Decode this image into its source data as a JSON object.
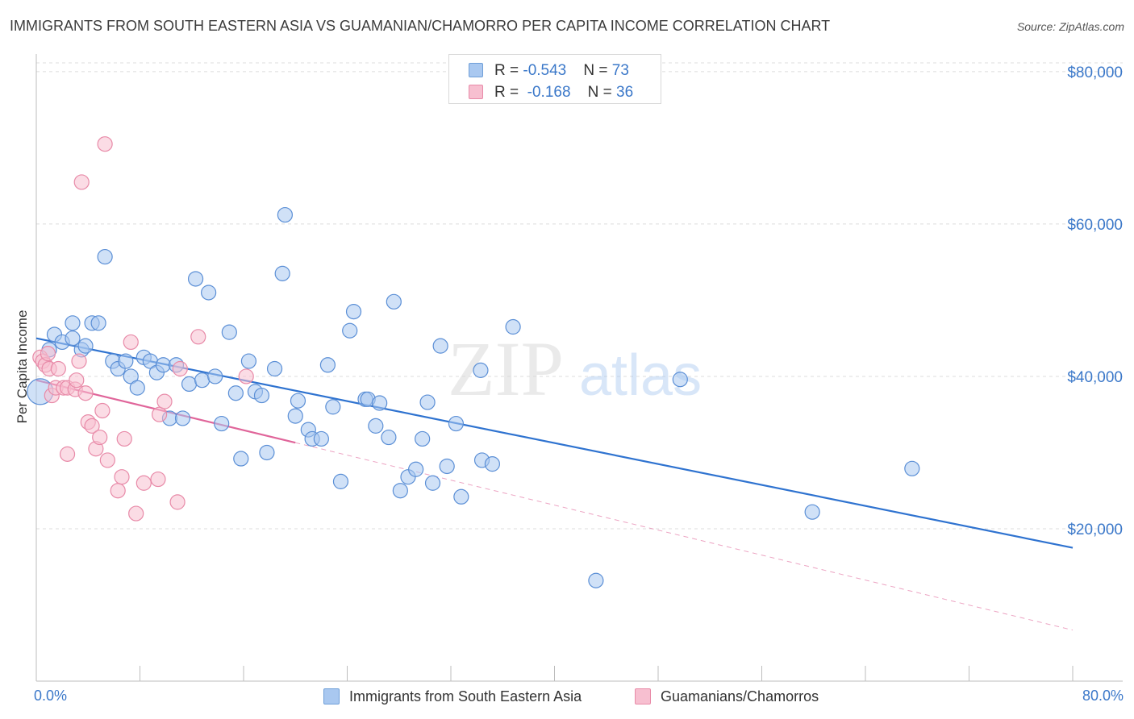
{
  "title": "IMMIGRANTS FROM SOUTH EASTERN ASIA VS GUAMANIAN/CHAMORRO PER CAPITA INCOME CORRELATION CHART",
  "source": "Source: ZipAtlas.com",
  "watermark": {
    "zip": "ZIP",
    "atlas": "atlas"
  },
  "legend": {
    "rows": [
      {
        "r_label": "R = ",
        "r_value": "-0.543",
        "n_label": "N = ",
        "n_value": "73",
        "color": "#a9c8f0",
        "border": "#6f9fd8"
      },
      {
        "r_label": "R = ",
        "r_value": "-0.168",
        "n_label": "N = ",
        "n_value": "36",
        "color": "#f7bfd0",
        "border": "#e88aa8"
      }
    ]
  },
  "chart_data": {
    "type": "scatter",
    "xlabel": "",
    "ylabel": "Per Capita Income",
    "xlim": [
      0,
      80
    ],
    "ylim": [
      0,
      82000
    ],
    "x_tick_labels": [
      "0.0%",
      "80.0%"
    ],
    "y_ticks": [
      20000,
      40000,
      60000,
      80000
    ],
    "y_tick_labels": [
      "$20,000",
      "$40,000",
      "$60,000",
      "$80,000"
    ],
    "grid": "horizontal dashed",
    "legend_position": "bottom",
    "series": [
      {
        "name": "Immigrants from South Eastern Asia",
        "color": "#a9c8f0",
        "stroke": "#5b8fd6",
        "line_color": "#2f73d0",
        "trend": {
          "x": [
            0,
            80
          ],
          "y": [
            45000,
            17500
          ]
        },
        "points": [
          [
            0.3,
            38000
          ],
          [
            1.4,
            45500
          ],
          [
            2.0,
            44500
          ],
          [
            2.8,
            45000
          ],
          [
            2.8,
            47000
          ],
          [
            3.5,
            43500
          ],
          [
            3.8,
            44000
          ],
          [
            4.3,
            47000
          ],
          [
            4.8,
            47000
          ],
          [
            5.3,
            55700
          ],
          [
            5.9,
            42000
          ],
          [
            6.3,
            41000
          ],
          [
            6.9,
            42000
          ],
          [
            7.3,
            40000
          ],
          [
            7.8,
            38500
          ],
          [
            8.3,
            42500
          ],
          [
            8.8,
            42000
          ],
          [
            9.3,
            40500
          ],
          [
            9.8,
            41500
          ],
          [
            10.3,
            34500
          ],
          [
            10.8,
            41500
          ],
          [
            11.3,
            34500
          ],
          [
            11.8,
            39000
          ],
          [
            12.3,
            52800
          ],
          [
            12.8,
            39500
          ],
          [
            13.3,
            51000
          ],
          [
            13.8,
            40000
          ],
          [
            14.3,
            33800
          ],
          [
            14.9,
            45800
          ],
          [
            15.4,
            37800
          ],
          [
            15.8,
            29200
          ],
          [
            16.4,
            42000
          ],
          [
            16.9,
            38000
          ],
          [
            17.4,
            37500
          ],
          [
            17.8,
            30000
          ],
          [
            18.4,
            41000
          ],
          [
            19.0,
            53500
          ],
          [
            19.2,
            61200
          ],
          [
            20.0,
            34800
          ],
          [
            20.2,
            36800
          ],
          [
            21.0,
            33000
          ],
          [
            21.3,
            31800
          ],
          [
            22.0,
            31800
          ],
          [
            22.5,
            41500
          ],
          [
            22.9,
            36000
          ],
          [
            23.5,
            26200
          ],
          [
            24.2,
            46000
          ],
          [
            24.5,
            48500
          ],
          [
            25.4,
            37000
          ],
          [
            25.6,
            37000
          ],
          [
            26.2,
            33500
          ],
          [
            26.5,
            36500
          ],
          [
            27.2,
            32000
          ],
          [
            27.6,
            49800
          ],
          [
            28.1,
            25000
          ],
          [
            28.7,
            26800
          ],
          [
            29.3,
            27800
          ],
          [
            29.8,
            31800
          ],
          [
            30.2,
            36600
          ],
          [
            30.6,
            26000
          ],
          [
            31.2,
            44000
          ],
          [
            31.7,
            28200
          ],
          [
            32.4,
            33800
          ],
          [
            32.8,
            24200
          ],
          [
            34.3,
            40800
          ],
          [
            34.4,
            29000
          ],
          [
            35.2,
            28500
          ],
          [
            36.8,
            46500
          ],
          [
            43.2,
            13200
          ],
          [
            49.7,
            39600
          ],
          [
            59.9,
            22200
          ],
          [
            67.6,
            27900
          ],
          [
            1.0,
            43500
          ]
        ]
      },
      {
        "name": "Guamanians/Chamorros",
        "color": "#f7bfd0",
        "stroke": "#e88aa8",
        "line_color": "#e0659a",
        "trend": {
          "x": [
            0,
            20
          ],
          "y": [
            39500,
            31300
          ]
        },
        "trend_ext": {
          "x": [
            20,
            80
          ],
          "y": [
            31300,
            6700
          ]
        },
        "points": [
          [
            0.3,
            42500
          ],
          [
            0.5,
            42000
          ],
          [
            0.7,
            41500
          ],
          [
            1.0,
            41000
          ],
          [
            1.2,
            37500
          ],
          [
            1.5,
            38500
          ],
          [
            1.7,
            41000
          ],
          [
            2.1,
            38500
          ],
          [
            2.4,
            38500
          ],
          [
            2.4,
            29800
          ],
          [
            3.0,
            38300
          ],
          [
            3.1,
            39500
          ],
          [
            3.3,
            42000
          ],
          [
            3.5,
            65500
          ],
          [
            3.8,
            37800
          ],
          [
            4.0,
            34000
          ],
          [
            4.3,
            33500
          ],
          [
            4.6,
            30500
          ],
          [
            4.9,
            32000
          ],
          [
            5.1,
            35500
          ],
          [
            5.3,
            70500
          ],
          [
            5.5,
            29000
          ],
          [
            6.3,
            25000
          ],
          [
            6.6,
            26800
          ],
          [
            6.8,
            31800
          ],
          [
            7.3,
            44500
          ],
          [
            7.7,
            22000
          ],
          [
            8.3,
            26000
          ],
          [
            9.4,
            26500
          ],
          [
            9.5,
            35000
          ],
          [
            9.9,
            36700
          ],
          [
            10.9,
            23500
          ],
          [
            11.1,
            41000
          ],
          [
            12.5,
            45200
          ],
          [
            16.2,
            40000
          ],
          [
            0.9,
            43000
          ]
        ]
      }
    ]
  }
}
